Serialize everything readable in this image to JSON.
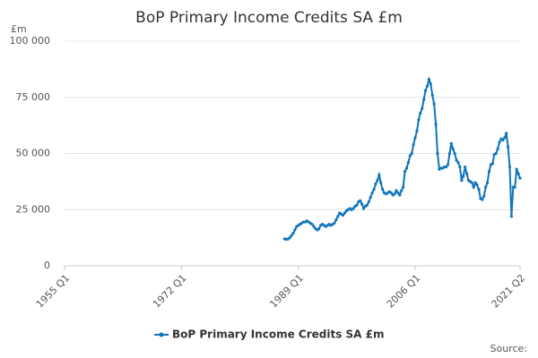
{
  "chart_data": {
    "type": "line",
    "title": "BoP Primary Income Credits SA £m",
    "y_label": "£m",
    "source": "Source:",
    "x": [
      1987,
      1987.25,
      1987.5,
      1987.75,
      1988,
      1988.25,
      1988.5,
      1988.75,
      1989,
      1989.25,
      1989.5,
      1989.75,
      1990,
      1990.25,
      1990.5,
      1990.75,
      1991,
      1991.25,
      1991.5,
      1991.75,
      1992,
      1992.25,
      1992.5,
      1992.75,
      1993,
      1993.25,
      1993.5,
      1993.75,
      1994,
      1994.25,
      1994.5,
      1994.75,
      1995,
      1995.25,
      1995.5,
      1995.75,
      1996,
      1996.25,
      1996.5,
      1996.75,
      1997,
      1997.25,
      1997.5,
      1997.75,
      1998,
      1998.25,
      1998.5,
      1998.75,
      1999,
      1999.25,
      1999.5,
      1999.75,
      2000,
      2000.25,
      2000.5,
      2000.75,
      2001,
      2001.25,
      2001.5,
      2001.75,
      2002,
      2002.25,
      2002.5,
      2002.75,
      2003,
      2003.25,
      2003.5,
      2003.75,
      2004,
      2004.25,
      2004.5,
      2004.75,
      2005,
      2005.25,
      2005.5,
      2005.75,
      2006,
      2006.25,
      2006.5,
      2006.75,
      2007,
      2007.25,
      2007.5,
      2007.75,
      2008,
      2008.25,
      2008.5,
      2008.75,
      2009,
      2009.25,
      2009.5,
      2009.75,
      2010,
      2010.25,
      2010.5,
      2010.75,
      2011,
      2011.25,
      2011.5,
      2011.75,
      2012,
      2012.25,
      2012.5,
      2012.75,
      2013,
      2013.25,
      2013.5,
      2013.75,
      2014,
      2014.25,
      2014.5,
      2014.75,
      2015,
      2015.25,
      2015.5,
      2015.75,
      2016,
      2016.25,
      2016.5,
      2016.75,
      2017,
      2017.25,
      2017.5,
      2017.75,
      2018,
      2018.25,
      2018.5,
      2018.75,
      2019,
      2019.25,
      2019.5,
      2019.75,
      2020,
      2020.25,
      2020.5,
      2020.75,
      2021,
      2021.25
    ],
    "series": [
      {
        "name": "BoP Primary Income Credits SA £m",
        "color": "#0f75bc",
        "values": [
          12000,
          11800,
          11900,
          12500,
          13500,
          14500,
          16000,
          17500,
          18000,
          18500,
          19000,
          19500,
          19500,
          20000,
          19500,
          19000,
          18500,
          17500,
          16500,
          16000,
          16500,
          18000,
          18500,
          18000,
          17500,
          18000,
          18500,
          18000,
          18500,
          19000,
          20500,
          22000,
          23500,
          23000,
          22500,
          23500,
          24500,
          25000,
          25500,
          25000,
          25500,
          26500,
          27000,
          28500,
          29000,
          27500,
          25500,
          26500,
          27000,
          28500,
          30500,
          32500,
          34000,
          36500,
          38000,
          40500,
          37000,
          34000,
          32500,
          32000,
          32500,
          33000,
          32500,
          31500,
          32000,
          33500,
          32500,
          31500,
          33500,
          35000,
          42000,
          43500,
          46000,
          49000,
          50000,
          54000,
          57000,
          60000,
          65000,
          68000,
          70000,
          74000,
          78000,
          80000,
          83000,
          81000,
          76000,
          72000,
          63000,
          50000,
          43000,
          43500,
          43500,
          44000,
          44000,
          45000,
          50000,
          54500,
          52000,
          50000,
          47000,
          46000,
          44000,
          38000,
          40000,
          44000,
          41000,
          38000,
          37500,
          37000,
          35000,
          37000,
          36000,
          34000,
          30000,
          29500,
          31000,
          35000,
          37000,
          42000,
          45000,
          45500,
          49500,
          50000,
          52000,
          55000,
          56500,
          56000,
          57000,
          59000,
          53000,
          44000,
          22000,
          35000,
          35000,
          43000,
          41000,
          39000
        ]
      }
    ],
    "xlim": [
      1955,
      2021.25
    ],
    "xticks": [
      {
        "value": 1955,
        "label": "1955 Q1"
      },
      {
        "value": 1972,
        "label": "1972 Q1"
      },
      {
        "value": 1989,
        "label": "1989 Q1"
      },
      {
        "value": 2006,
        "label": "2006 Q1"
      },
      {
        "value": 2021.25,
        "label": "2021 Q2"
      }
    ],
    "ylim": [
      0,
      100000
    ],
    "yticks": [
      0,
      {
        "value": 25000,
        "label": "25 000"
      },
      {
        "value": 50000,
        "label": "50 000"
      },
      {
        "value": 75000,
        "label": "75 000"
      },
      {
        "value": 100000,
        "label": "100 000"
      }
    ],
    "grid": true
  }
}
